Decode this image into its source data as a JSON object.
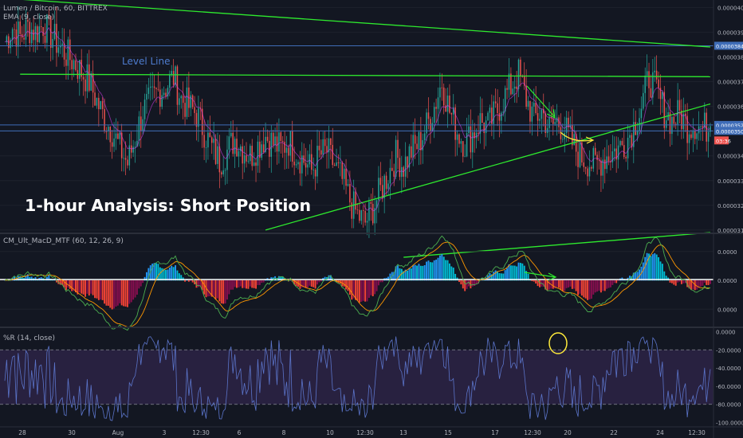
{
  "chart_data": [
    {
      "type": "candlestick",
      "title": "Lumen / Bitcoin, 60, BITTREX",
      "indicator": "EMA (9, close)",
      "annotation_title": "1-hour Analysis: Short Position",
      "annotation_level": "Level Line",
      "price_tag_upper": "0.00003845",
      "price_tag_current": "0.00003525",
      "price_tag_lower": "0.00003501",
      "countdown": "03:36",
      "y_ticks": [
        "0.00004000",
        "0.00003900",
        "0.00003800",
        "0.00003700",
        "0.00003600",
        "0.00003500",
        "0.00003400",
        "0.00003300",
        "0.00003200",
        "0.00003100"
      ],
      "y_values": [
        4e-05,
        3.9e-05,
        3.8e-05,
        3.7e-05,
        3.6e-05,
        3.5e-05,
        3.4e-05,
        3.3e-05,
        3.2e-05,
        3.1e-05
      ],
      "ylim": [
        3.09e-05,
        4.03e-05
      ],
      "candle_colors": {
        "up": "#26a69a",
        "down": "#ef5350"
      },
      "closes": [
        3.86e-05,
        3.92e-05,
        3.88e-05,
        3.92e-05,
        3.9e-05,
        3.93e-05,
        3.89e-05,
        3.85e-05,
        3.81e-05,
        3.78e-05,
        3.74e-05,
        3.7e-05,
        3.62e-05,
        3.55e-05,
        3.5e-05,
        3.43e-05,
        3.37e-05,
        3.47e-05,
        3.58e-05,
        3.62e-05,
        3.66e-05,
        3.68e-05,
        3.72e-05,
        3.63e-05,
        3.6e-05,
        3.57e-05,
        3.5e-05,
        3.43e-05,
        3.38e-05,
        3.42e-05,
        3.47e-05,
        3.43e-05,
        3.4e-05,
        3.44e-05,
        3.48e-05,
        3.45e-05,
        3.43e-05,
        3.46e-05,
        3.41e-05,
        3.38e-05,
        3.34e-05,
        3.4e-05,
        3.42e-05,
        3.36e-05,
        3.3e-05,
        3.22e-05,
        3.16e-05,
        3.13e-05,
        3.19e-05,
        3.26e-05,
        3.33e-05,
        3.4e-05,
        3.36e-05,
        3.42e-05,
        3.45e-05,
        3.52e-05,
        3.6e-05,
        3.7e-05,
        3.58e-05,
        3.5e-05,
        3.45e-05,
        3.49e-05,
        3.54e-05,
        3.52e-05,
        3.57e-05,
        3.63e-05,
        3.68e-05,
        3.73e-05,
        3.63e-05,
        3.55e-05,
        3.58e-05,
        3.51e-05,
        3.54e-05,
        3.51e-05,
        3.45e-05,
        3.4e-05,
        3.38e-05,
        3.36e-05,
        3.39e-05,
        3.41e-05,
        3.43e-05,
        3.46e-05,
        3.52e-05,
        3.6e-05,
        3.72e-05,
        3.66e-05,
        3.58e-05,
        3.54e-05,
        3.57e-05,
        3.52e-05,
        3.53e-05,
        3.51e-05,
        3.52e-05
      ],
      "trendlines_price": [
        {
          "color": "#2eea2e",
          "points": [
            [
              -6,
              4.05e-05
            ],
            [
              92,
              3.84e-05
            ]
          ]
        },
        {
          "color": "#2eea2e",
          "points": [
            [
              2,
              3.73e-05
            ],
            [
              92,
              3.72e-05
            ]
          ]
        },
        {
          "color": "#2eea2e",
          "points": [
            [
              34,
              3.1e-05
            ],
            [
              92,
              3.61e-05
            ]
          ]
        },
        {
          "color": "#2eea2e",
          "points": [
            [
              52,
              2.99e-05
            ],
            [
              92,
              3.09e-05
            ]
          ]
        }
      ],
      "horizontal_lines": [
        {
          "color": "#3f6db8",
          "value": 3.845e-05
        },
        {
          "color": "#3f6db8",
          "value": 3.525e-05
        },
        {
          "color": "#3f6db8",
          "value": 3.501e-05
        }
      ],
      "macd": {
        "title": "CM_Ult_MacD_MTF (60, 12, 26, 9)",
        "y_ticks": [
          "0.0000",
          "0.0000",
          "0.0000"
        ],
        "y_values": [
          1e-06,
          0,
          -1e-06
        ],
        "ylim": [
          -1.6e-06,
          1.6e-06
        ],
        "histogram_colors": {
          "up_above": "#2196f3",
          "above": "#00bcd4",
          "below": "#f44336",
          "below_down": "#880e4f"
        },
        "zero_line_color": "#ffffff"
      },
      "williams_r": {
        "title": "%R (14, close)",
        "y_ticks": [
          "0.0000",
          "-20.0000",
          "-40.0000",
          "-60.0000",
          "-80.0000",
          "-100.0000"
        ],
        "y_values": [
          0,
          -20,
          -40,
          -60,
          -80,
          -100
        ],
        "ylim": [
          -104,
          4
        ],
        "band": [
          -80,
          -20
        ],
        "line_color": "#5b74c9",
        "band_color": "#3b2a5a"
      },
      "x_tick_labels": [
        "28",
        "30",
        "Aug",
        "3",
        "12:30",
        "6",
        "8",
        "10",
        "12:30",
        "13",
        "15",
        "17",
        "12:30",
        "20",
        "22",
        "24",
        "12:30"
      ]
    }
  ]
}
